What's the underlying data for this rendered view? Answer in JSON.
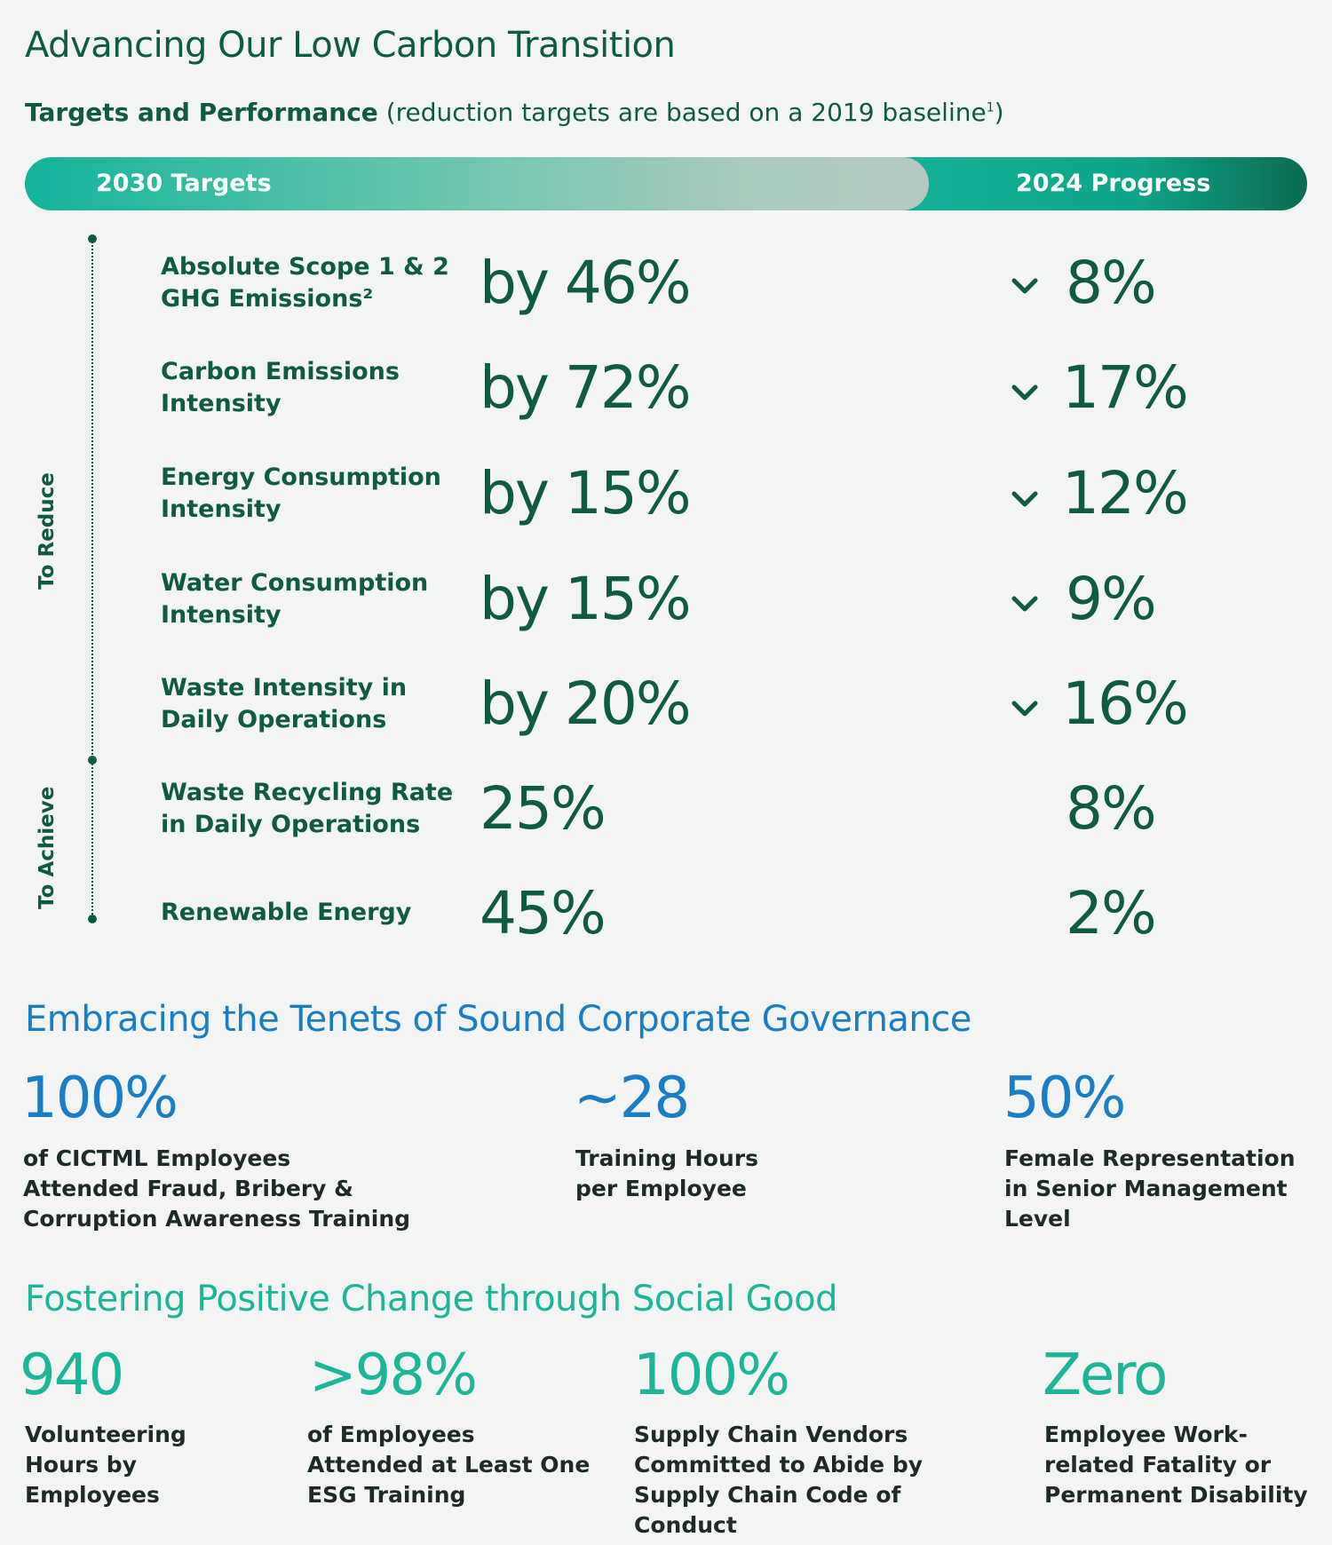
{
  "low_carbon": {
    "title": "Advancing Our Low Carbon Transition",
    "subtitle_bold": "Targets and Performance",
    "subtitle_rest": " (reduction targets are based on a 2019 baseline",
    "subtitle_sup": "1",
    "subtitle_close": ")",
    "bar_left_label": "2030 Targets",
    "bar_right_label": "2024 Progress",
    "group_reduce": "To Reduce",
    "group_achieve": "To Achieve",
    "rows": [
      {
        "label_line1": "Absolute Scope 1 & 2",
        "label_line2": "GHG Emissions²",
        "target": "by 46%",
        "progress": "8%"
      },
      {
        "label_line1": "Carbon Emissions",
        "label_line2": "Intensity",
        "target": "by 72%",
        "progress": "17%"
      },
      {
        "label_line1": "Energy Consumption",
        "label_line2": "Intensity",
        "target": "by 15%",
        "progress": "12%"
      },
      {
        "label_line1": "Water Consumption",
        "label_line2": "Intensity",
        "target": "by 15%",
        "progress": "9%"
      },
      {
        "label_line1": "Waste Intensity in",
        "label_line2": "Daily Operations",
        "target": "by 20%",
        "progress": "16%"
      },
      {
        "label_line1": "Waste Recycling Rate",
        "label_line2": "in Daily Operations",
        "target": "25%",
        "progress": "8%"
      },
      {
        "label_line1": "Renewable Energy",
        "label_line2": "",
        "target": "45%",
        "progress": "2%"
      }
    ],
    "down_icon": "chevron-down-icon"
  },
  "governance": {
    "title": "Embracing the Tenets of Sound Corporate Governance",
    "stats": [
      {
        "value": "100%",
        "desc_lines": [
          "of CICTML Employees",
          "Attended Fraud, Bribery &",
          "Corruption Awareness Training"
        ]
      },
      {
        "value": "~28",
        "desc_lines": [
          "Training Hours",
          "per Employee"
        ]
      },
      {
        "value": "50%",
        "desc_lines": [
          "Female Representation",
          "in Senior Management",
          "Level"
        ]
      }
    ]
  },
  "social": {
    "title": "Fostering Positive Change through Social Good",
    "stats": [
      {
        "value": "940",
        "desc_lines": [
          "Volunteering",
          "Hours by",
          "Employees"
        ]
      },
      {
        "value": ">98%",
        "desc_lines": [
          "of Employees",
          "Attended at Least One",
          "ESG Training"
        ]
      },
      {
        "value": "100%",
        "desc_lines": [
          "Supply Chain Vendors",
          "Committed to Abide by",
          "Supply Chain Code of",
          "Conduct"
        ]
      },
      {
        "value": "Zero",
        "desc_lines": [
          "Employee Work-",
          "related Fatality or",
          "Permanent Disability"
        ]
      }
    ]
  },
  "colors": {
    "dark_green": "#0f5a43",
    "teal": "#1db59a",
    "blue": "#1a7ec4",
    "text_dark": "#1e2a2a",
    "background": "#f2f5f3"
  }
}
